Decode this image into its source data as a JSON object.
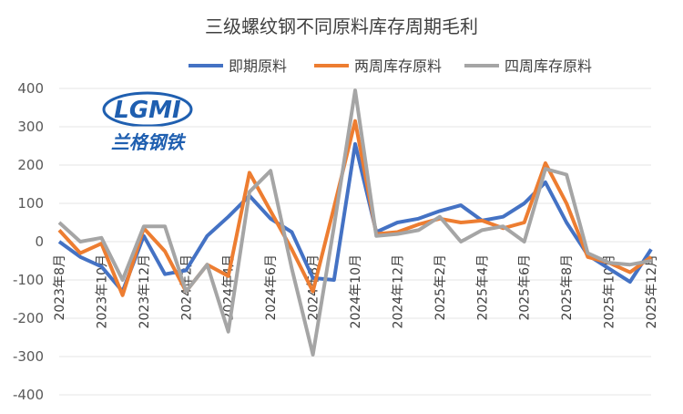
{
  "chart_data": {
    "type": "line",
    "title": "三级螺纹钢不同原料库存周期毛利",
    "logo": {
      "mark": "LGMI",
      "name": "兰格钢铁"
    },
    "categories": [
      "2023年8月",
      null,
      "2023年10月",
      null,
      "2023年12月",
      null,
      "2024年2月",
      null,
      "2024年4月",
      null,
      "2024年6月",
      null,
      "2024年8月",
      null,
      "2024年10月",
      null,
      "2024年12月",
      null,
      "2025年2月",
      null,
      "2025年4月",
      null,
      "2025年6月",
      null,
      "2025年8月",
      null,
      "2025年10月",
      null,
      "2025年12月"
    ],
    "series": [
      {
        "name": "即期原料",
        "color": "#4472c4",
        "values": [
          0,
          -40,
          -65,
          -130,
          15,
          -85,
          -75,
          15,
          65,
          120,
          60,
          25,
          -95,
          -100,
          255,
          25,
          50,
          60,
          80,
          95,
          55,
          65,
          100,
          155,
          50,
          -35,
          -70,
          -105,
          -20
        ]
      },
      {
        "name": "两周库存原料",
        "color": "#ed7d31",
        "values": [
          30,
          -30,
          -5,
          -140,
          35,
          -25,
          -130,
          -60,
          -90,
          180,
          80,
          -20,
          -130,
          90,
          315,
          20,
          25,
          45,
          60,
          50,
          55,
          35,
          50,
          205,
          100,
          -40,
          -55,
          -80,
          -40
        ]
      },
      {
        "name": "四周库存原料",
        "color": "#a5a5a5",
        "values": [
          50,
          0,
          10,
          -100,
          40,
          40,
          -130,
          -60,
          -235,
          130,
          185,
          -70,
          -295,
          40,
          395,
          15,
          20,
          30,
          65,
          0,
          30,
          40,
          0,
          190,
          175,
          -30,
          -55,
          -60,
          -50
        ]
      }
    ],
    "ylim": [
      -400,
      400
    ],
    "yticks": [
      -400,
      -300,
      -200,
      -100,
      0,
      100,
      200,
      300,
      400
    ],
    "grid": true,
    "legend": "top-right"
  }
}
